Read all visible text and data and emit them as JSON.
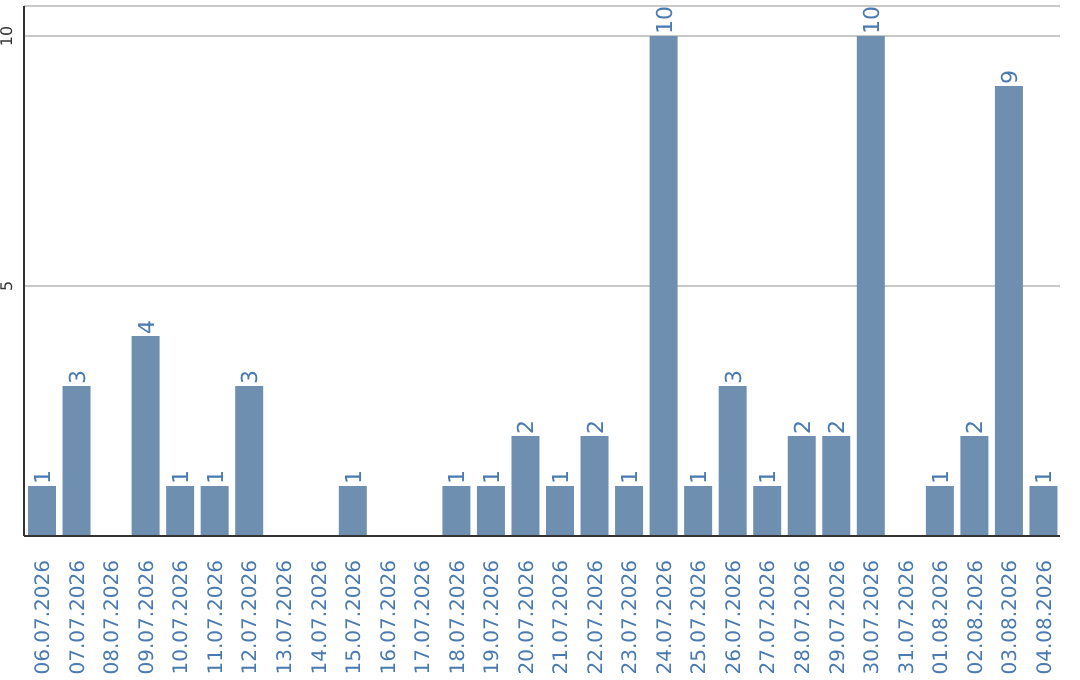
{
  "chart_data": {
    "type": "bar",
    "categories": [
      "06.07.2026",
      "07.07.2026",
      "08.07.2026",
      "09.07.2026",
      "10.07.2026",
      "11.07.2026",
      "12.07.2026",
      "13.07.2026",
      "14.07.2026",
      "15.07.2026",
      "16.07.2026",
      "17.07.2026",
      "18.07.2026",
      "19.07.2026",
      "20.07.2026",
      "21.07.2026",
      "22.07.2026",
      "23.07.2026",
      "24.07.2026",
      "25.07.2026",
      "26.07.2026",
      "27.07.2026",
      "28.07.2026",
      "29.07.2026",
      "30.07.2026",
      "31.07.2026",
      "01.08.2026",
      "02.08.2026",
      "03.08.2026",
      "04.08.2026"
    ],
    "values": [
      1,
      3,
      0,
      4,
      1,
      1,
      3,
      0,
      0,
      1,
      0,
      0,
      1,
      1,
      2,
      1,
      2,
      1,
      10,
      1,
      3,
      1,
      2,
      2,
      10,
      0,
      1,
      2,
      9,
      1
    ],
    "value_labels": [
      "1",
      "3",
      null,
      "4",
      "1",
      "1",
      "3",
      null,
      null,
      "1",
      null,
      null,
      "1",
      "1",
      "2",
      "1",
      "2",
      "1",
      "10",
      "1",
      "3",
      "1",
      "2",
      "2",
      "10",
      null,
      "1",
      "2",
      "9",
      "1"
    ],
    "color": "#6e8fb0",
    "ylim": [
      0,
      10.6
    ],
    "yticks": [
      5,
      10
    ],
    "grid": "y"
  }
}
